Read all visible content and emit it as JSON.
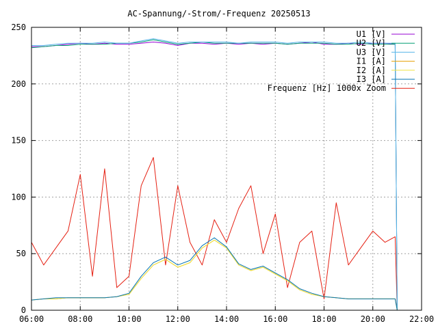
{
  "chart_data": {
    "type": "line",
    "title": "AC-Spannung/-Strom/-Frequenz 20250513",
    "xlabel": "",
    "ylabel": "",
    "xlim": [
      "06:00",
      "22:00"
    ],
    "ylim": [
      0,
      250
    ],
    "x_ticks": [
      "06:00",
      "08:00",
      "10:00",
      "12:00",
      "14:00",
      "16:00",
      "18:00",
      "20:00",
      "22:00"
    ],
    "y_ticks": [
      "0",
      "50",
      "100",
      "150",
      "200",
      "250"
    ],
    "grid": true,
    "legend_position": "top-right",
    "x": [
      "06:00",
      "06:30",
      "07:00",
      "07:30",
      "08:00",
      "08:30",
      "09:00",
      "09:30",
      "10:00",
      "10:30",
      "11:00",
      "11:30",
      "12:00",
      "12:30",
      "13:00",
      "13:30",
      "14:00",
      "14:30",
      "15:00",
      "15:30",
      "16:00",
      "16:30",
      "17:00",
      "17:30",
      "18:00",
      "18:30",
      "19:00",
      "19:30",
      "20:00",
      "20:30",
      "20:55",
      "21:00"
    ],
    "series": [
      {
        "name": "U1 [V]",
        "color": "#9400d3",
        "values": [
          233,
          233,
          234,
          235,
          236,
          235,
          236,
          235,
          235,
          236,
          237,
          236,
          234,
          236,
          236,
          235,
          236,
          235,
          236,
          235,
          236,
          235,
          236,
          237,
          235,
          235,
          236,
          235,
          236,
          236,
          235,
          0
        ]
      },
      {
        "name": "U2 [V]",
        "color": "#009e73",
        "values": [
          232,
          233,
          234,
          234,
          235,
          235,
          235,
          236,
          236,
          237,
          239,
          237,
          235,
          236,
          237,
          236,
          236,
          236,
          236,
          236,
          236,
          235,
          236,
          236,
          236,
          235,
          235,
          236,
          235,
          235,
          235,
          0
        ]
      },
      {
        "name": "U3 [V]",
        "color": "#56b4e9",
        "values": [
          234,
          234,
          235,
          236,
          236,
          236,
          237,
          236,
          236,
          238,
          240,
          238,
          236,
          237,
          237,
          237,
          237,
          236,
          237,
          237,
          237,
          236,
          237,
          237,
          237,
          236,
          236,
          237,
          236,
          236,
          236,
          0
        ]
      },
      {
        "name": "I1 [A]",
        "color": "#e69f00",
        "values": [
          9,
          10,
          10,
          11,
          11,
          11,
          11,
          12,
          14,
          28,
          40,
          45,
          38,
          42,
          55,
          62,
          55,
          40,
          35,
          38,
          32,
          26,
          18,
          14,
          12,
          11,
          10,
          10,
          10,
          10,
          10,
          0
        ]
      },
      {
        "name": "I2 [A]",
        "color": "#f0e442",
        "values": [
          9,
          10,
          10,
          11,
          11,
          11,
          11,
          12,
          14,
          28,
          40,
          45,
          38,
          42,
          55,
          62,
          55,
          40,
          35,
          38,
          32,
          26,
          18,
          14,
          12,
          11,
          10,
          10,
          10,
          10,
          10,
          0
        ]
      },
      {
        "name": "I3 [A]",
        "color": "#0072b2",
        "values": [
          9,
          10,
          11,
          11,
          11,
          11,
          11,
          12,
          15,
          30,
          42,
          47,
          40,
          44,
          57,
          64,
          56,
          41,
          36,
          39,
          33,
          27,
          19,
          15,
          12,
          11,
          10,
          10,
          10,
          10,
          10,
          0
        ]
      },
      {
        "name": "Frequenz [Hz] 1000x Zoom",
        "color": "#e51e10",
        "values": [
          60,
          40,
          55,
          70,
          120,
          30,
          125,
          20,
          30,
          110,
          135,
          40,
          110,
          60,
          40,
          80,
          60,
          90,
          110,
          50,
          85,
          20,
          60,
          70,
          10,
          95,
          40,
          55,
          70,
          60,
          65,
          0
        ]
      }
    ]
  }
}
